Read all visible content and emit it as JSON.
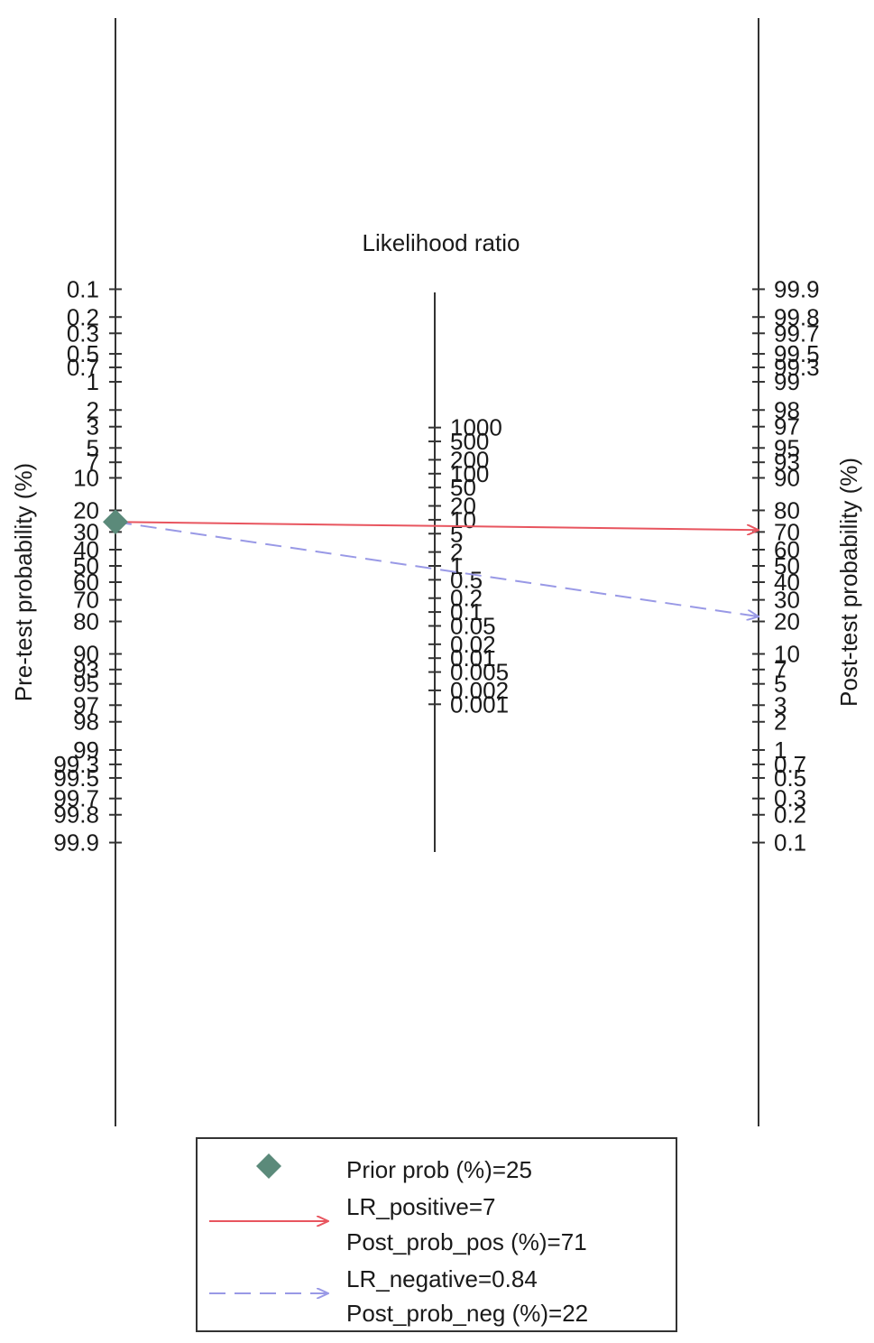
{
  "chart_data": {
    "type": "nomogram",
    "left_axis": {
      "title": "Pre-test probability (%)",
      "ticks": [
        "0.1",
        "0.2",
        "0.3",
        "0.5",
        "0.7",
        "1",
        "2",
        "3",
        "5",
        "7",
        "10",
        "20",
        "30",
        "40",
        "50",
        "60",
        "70",
        "80",
        "90",
        "93",
        "95",
        "97",
        "98",
        "99",
        "99.3",
        "99.5",
        "99.7",
        "99.8",
        "99.9"
      ]
    },
    "center_axis": {
      "title": "Likelihood ratio",
      "ticks": [
        "1000",
        "500",
        "200",
        "100",
        "50",
        "20",
        "10",
        "5",
        "2",
        "1",
        "0.5",
        "0.2",
        "0.1",
        "0.05",
        "0.02",
        "0.01",
        "0.005",
        "0.002",
        "0.001"
      ]
    },
    "right_axis": {
      "title": "Post-test probability (%)",
      "ticks": [
        "99.9",
        "99.8",
        "99.7",
        "99.5",
        "99.3",
        "99",
        "98",
        "97",
        "95",
        "93",
        "90",
        "80",
        "70",
        "60",
        "50",
        "40",
        "30",
        "20",
        "10",
        "7",
        "5",
        "3",
        "2",
        "1",
        "0.7",
        "0.5",
        "0.3",
        "0.2",
        "0.1"
      ]
    },
    "prior_prob": 25,
    "lr_positive": 7,
    "post_prob_pos": 71,
    "lr_negative": 0.84,
    "post_prob_neg": 22,
    "colors": {
      "prior_marker": "#5b8a7a",
      "positive_line": "#e8555f",
      "negative_line": "#9999e6",
      "axis": "#333333"
    },
    "legend": {
      "prior_label": "Prior prob (%)=25",
      "pos_lr_label": "LR_positive=7",
      "pos_post_label": "Post_prob_pos (%)=71",
      "neg_lr_label": "LR_negative=0.84",
      "neg_post_label": "Post_prob_neg (%)=22"
    }
  }
}
